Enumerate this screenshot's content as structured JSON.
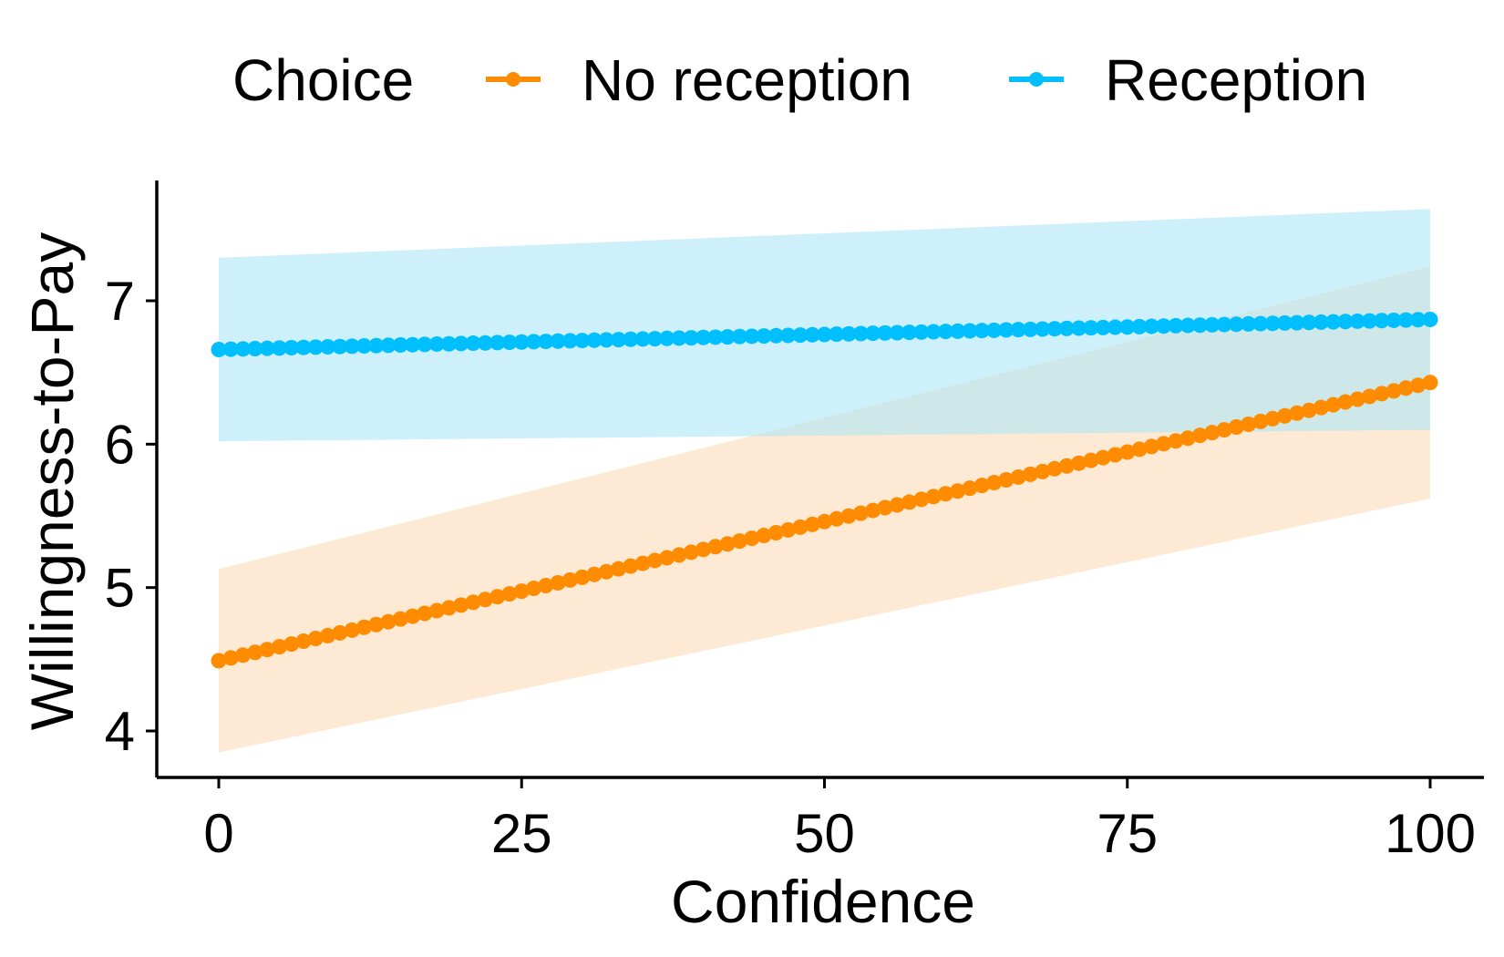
{
  "chart_data": {
    "type": "line",
    "xlabel": "Confidence",
    "ylabel": "Willingness-to-Pay",
    "xlim": [
      0,
      100
    ],
    "ylim": [
      3.65,
      7.85
    ],
    "xticks": [
      0,
      25,
      50,
      75,
      100
    ],
    "yticks": [
      4,
      5,
      6,
      7
    ],
    "grid": false,
    "legend": {
      "position": "top",
      "title": "Choice"
    },
    "series": [
      {
        "name": "No reception",
        "color": "#FF8C00",
        "band_color": "#FDD9B0",
        "line_style": "solid",
        "x_range": [
          0,
          100
        ],
        "fit_endpoints": {
          "y_at_0": 4.49,
          "y_at_100": 6.43
        },
        "ci_lower_endpoints": {
          "y_at_0": 3.85,
          "y_at_100": 5.62
        },
        "ci_upper_endpoints": {
          "y_at_0": 5.13,
          "y_at_100": 7.24
        }
      },
      {
        "name": "Reception",
        "color": "#00BFFF",
        "band_color": "#A6E4F8",
        "line_style": "dashed",
        "x_range": [
          0,
          100
        ],
        "fit_endpoints": {
          "y_at_0": 6.66,
          "y_at_100": 6.87
        },
        "ci_lower_endpoints": {
          "y_at_0": 6.02,
          "y_at_100": 6.1
        },
        "ci_upper_endpoints": {
          "y_at_0": 7.3,
          "y_at_100": 7.64
        }
      }
    ]
  }
}
